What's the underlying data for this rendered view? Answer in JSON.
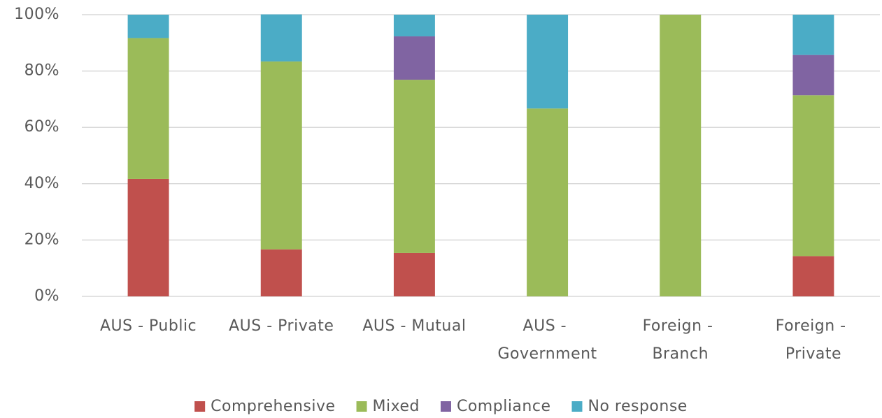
{
  "chart_data": {
    "type": "stacked_bar",
    "categories": [
      "AUS - Public",
      "AUS - Private",
      "AUS - Mutual",
      "AUS - Government",
      "Foreign - Branch",
      "Foreign - Private"
    ],
    "series": [
      {
        "name": "Comprehensive",
        "color": "#c0504d",
        "values": [
          41.7,
          16.7,
          15.4,
          0,
          0,
          14.3
        ]
      },
      {
        "name": "Mixed",
        "color": "#9bbb59",
        "values": [
          50,
          66.7,
          61.5,
          66.7,
          100,
          57.1
        ]
      },
      {
        "name": "Compliance",
        "color": "#8064a2",
        "values": [
          0,
          0,
          15.4,
          0,
          0,
          14.3
        ]
      },
      {
        "name": "No response",
        "color": "#4bacc6",
        "values": [
          8.3,
          16.7,
          7.7,
          33.3,
          0,
          14.3
        ]
      }
    ],
    "ylim": [
      0,
      100
    ],
    "yticks": [
      {
        "value": 0,
        "label": "0%"
      },
      {
        "value": 20,
        "label": "20%"
      },
      {
        "value": 40,
        "label": "40%"
      },
      {
        "value": 60,
        "label": "60%"
      },
      {
        "value": 80,
        "label": "80%"
      },
      {
        "value": 100,
        "label": "100%"
      }
    ],
    "grid": true,
    "legend": "bottom"
  }
}
